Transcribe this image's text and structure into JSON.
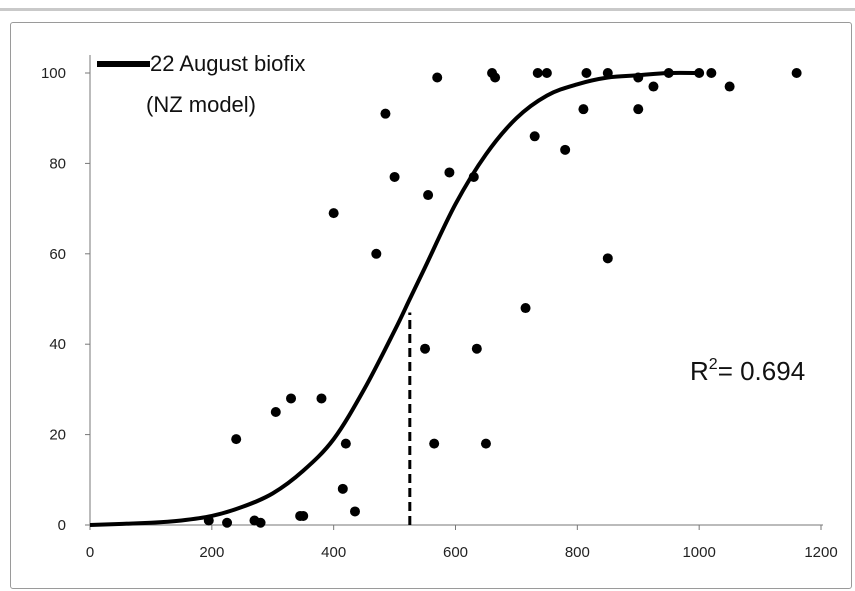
{
  "chart_data": {
    "type": "scatter",
    "title": "",
    "xlabel": "",
    "ylabel": "",
    "xlim": [
      0,
      1200
    ],
    "ylim": [
      0,
      100
    ],
    "x_ticks": [
      "0",
      "200",
      "400",
      "600",
      "800",
      "1000",
      "1200"
    ],
    "y_ticks": [
      "0",
      "20",
      "40",
      "60",
      "80",
      "100"
    ],
    "grid": false,
    "legend": {
      "placement": "top-left",
      "line1": "22 August biofix",
      "line2": "(NZ model)"
    },
    "annotation": {
      "r2_prefix": "R",
      "r2_sup": "2",
      "r2_label": "=  0.694"
    },
    "dashed_marker": {
      "x": 525,
      "y": 47
    },
    "series": [
      {
        "name": "22 August biofix (NZ model)",
        "kind": "line",
        "x": [
          0,
          100,
          150,
          200,
          250,
          300,
          350,
          400,
          450,
          500,
          525,
          550,
          600,
          650,
          700,
          750,
          800,
          850,
          900,
          950,
          1000
        ],
        "y": [
          0,
          0.5,
          1,
          2,
          4,
          7,
          12,
          19,
          30,
          43,
          50,
          57,
          71,
          82,
          90,
          95,
          97.5,
          99,
          99.5,
          100,
          100
        ]
      },
      {
        "kind": "points",
        "x": [
          195,
          225,
          240,
          270,
          280,
          305,
          330,
          345,
          350,
          380,
          400,
          415,
          420,
          435,
          470,
          485,
          500,
          550,
          555,
          565,
          570,
          590,
          630,
          635,
          650,
          660,
          665,
          715,
          730,
          735,
          750,
          780,
          810,
          815,
          850,
          850,
          900,
          900,
          925,
          950,
          1000,
          1020,
          1050,
          1160
        ],
        "y": [
          1,
          0.5,
          19,
          1,
          0.5,
          25,
          28,
          2,
          2,
          28,
          69,
          8,
          18,
          3,
          60,
          91,
          77,
          39,
          73,
          18,
          99,
          78,
          77,
          39,
          18,
          100,
          99,
          48,
          86,
          100,
          100,
          83,
          92,
          100,
          100,
          59,
          99,
          92,
          97,
          100,
          100,
          100,
          97,
          100
        ]
      }
    ]
  }
}
